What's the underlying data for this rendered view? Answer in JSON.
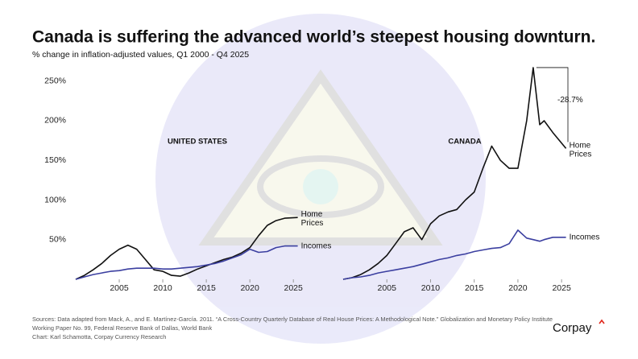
{
  "title": "Canada is suffering the advanced world’s steepest housing downturn.",
  "subtitle": "% change in inflation-adjusted values, Q1 2000 - Q4 2025",
  "source": [
    "Sources: Data adapted from Mack, A., and E. Martínez-García. 2011. “A Cross-Country Quarterly Database of Real House Prices: A Methodological Note.” Globalization and Monetary Policy Institute",
    "Working Paper No. 99, Federal Reserve Bank of Dallas, World Bank",
    "Chart: Karl Schamotta, Corpay Currency Research"
  ],
  "logo": "Corpay",
  "chart_data": [
    {
      "type": "line",
      "panel_label": "UNITED STATES",
      "x": [
        2000,
        2001,
        2002,
        2003,
        2004,
        2005,
        2006,
        2007,
        2008,
        2009,
        2010,
        2011,
        2012,
        2013,
        2014,
        2015,
        2016,
        2017,
        2018,
        2019,
        2020,
        2021,
        2022,
        2023,
        2024,
        2025.5
      ],
      "series": [
        {
          "name": "Home Prices",
          "color": "#111111",
          "values": [
            0,
            5,
            12,
            20,
            30,
            38,
            43,
            38,
            25,
            12,
            10,
            5,
            4,
            8,
            13,
            17,
            21,
            25,
            28,
            33,
            40,
            55,
            68,
            74,
            77,
            78
          ]
        },
        {
          "name": "Incomes",
          "color": "#3b3fa0",
          "values": [
            0,
            3,
            6,
            8,
            10,
            11,
            13,
            14,
            14,
            14,
            13,
            13,
            14,
            15,
            16,
            18,
            20,
            23,
            27,
            31,
            38,
            34,
            35,
            40,
            42,
            42
          ]
        }
      ],
      "xlim": [
        2000,
        2026
      ],
      "xticks": [
        2005,
        2010,
        2015,
        2020,
        2025
      ],
      "ylim": [
        0,
        270
      ],
      "yticks": [
        {
          "value": 50,
          "label": "50%"
        },
        {
          "value": 100,
          "label": "100%"
        },
        {
          "value": 150,
          "label": "150%"
        },
        {
          "value": 200,
          "label": "200%"
        },
        {
          "value": 250,
          "label": "250%"
        }
      ]
    },
    {
      "type": "line",
      "panel_label": "CANADA",
      "annotation": "-28.7%",
      "x": [
        2000,
        2001,
        2002,
        2003,
        2004,
        2005,
        2006,
        2007,
        2008,
        2009,
        2010,
        2011,
        2012,
        2013,
        2014,
        2015,
        2016,
        2017,
        2018,
        2019,
        2020,
        2021,
        2021.75,
        2022.5,
        2023,
        2024,
        2025.5
      ],
      "series": [
        {
          "name": "Home Prices",
          "color": "#111111",
          "values": [
            0,
            2,
            6,
            12,
            20,
            30,
            45,
            60,
            65,
            50,
            70,
            80,
            85,
            88,
            100,
            110,
            140,
            168,
            150,
            140,
            140,
            200,
            267,
            195,
            200,
            185,
            165
          ]
        },
        {
          "name": "Incomes",
          "color": "#3b3fa0",
          "values": [
            0,
            2,
            3,
            5,
            8,
            10,
            12,
            14,
            16,
            19,
            22,
            25,
            27,
            30,
            32,
            35,
            37,
            39,
            40,
            45,
            62,
            52,
            50,
            48,
            50,
            53,
            53
          ]
        }
      ],
      "xlim": [
        2000,
        2026
      ],
      "xticks": [
        2005,
        2010,
        2015,
        2020,
        2025
      ],
      "ylim": [
        0,
        270
      ]
    }
  ]
}
